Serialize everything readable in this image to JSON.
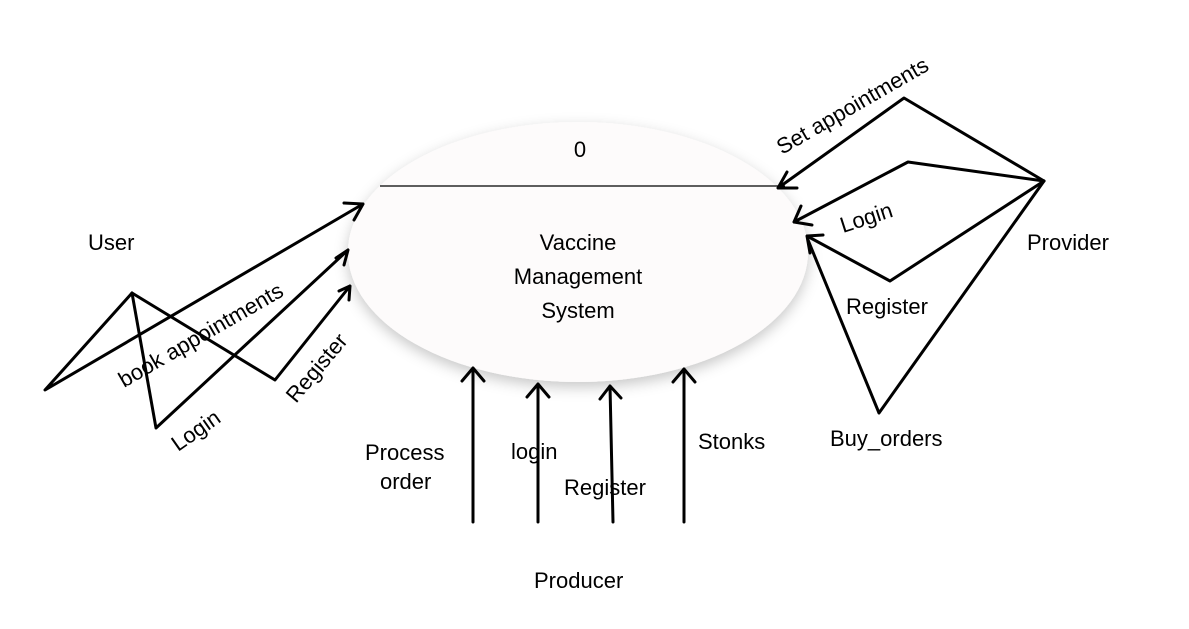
{
  "process": {
    "number": "0",
    "name_lines": [
      "Vaccine",
      "Management",
      "System"
    ]
  },
  "entities": {
    "user": "User",
    "provider": "Provider",
    "producer": "Producer"
  },
  "flows": {
    "user_book": "book appointments",
    "user_login": "Login",
    "user_register": "Register",
    "provider_set": "Set appointments",
    "provider_login": "Login",
    "provider_register": "Register",
    "provider_buy": "Buy_orders",
    "producer_process_1": "Process",
    "producer_process_2": "order",
    "producer_login": "login",
    "producer_register": "Register",
    "producer_stonks": "Stonks"
  }
}
